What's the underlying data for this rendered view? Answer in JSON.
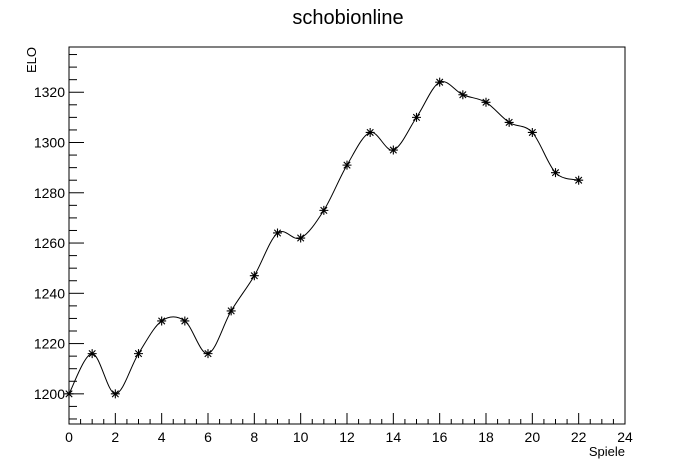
{
  "chart_data": {
    "type": "line",
    "title": "schobionline",
    "xlabel": "Spiele",
    "ylabel": "ELO",
    "xlim": [
      0,
      24
    ],
    "ylim": [
      1188,
      1338
    ],
    "x_ticks": [
      0,
      2,
      4,
      6,
      8,
      10,
      12,
      14,
      16,
      18,
      20,
      22,
      24
    ],
    "y_ticks": [
      1200,
      1220,
      1240,
      1260,
      1280,
      1300,
      1320
    ],
    "grid": false,
    "marker": "asterisk",
    "line_style": "smooth",
    "series": [
      {
        "x": [
          0,
          1,
          2,
          3,
          4,
          5,
          6,
          7,
          8,
          9,
          10,
          11,
          12,
          13,
          14,
          15,
          16,
          17,
          18,
          19,
          20,
          21,
          22
        ],
        "y": [
          1200,
          1216,
          1200,
          1216,
          1229,
          1229,
          1216,
          1233,
          1247,
          1264,
          1262,
          1273,
          1291,
          1304,
          1297,
          1310,
          1324,
          1319,
          1316,
          1308,
          1304,
          1288,
          1285
        ]
      }
    ]
  }
}
